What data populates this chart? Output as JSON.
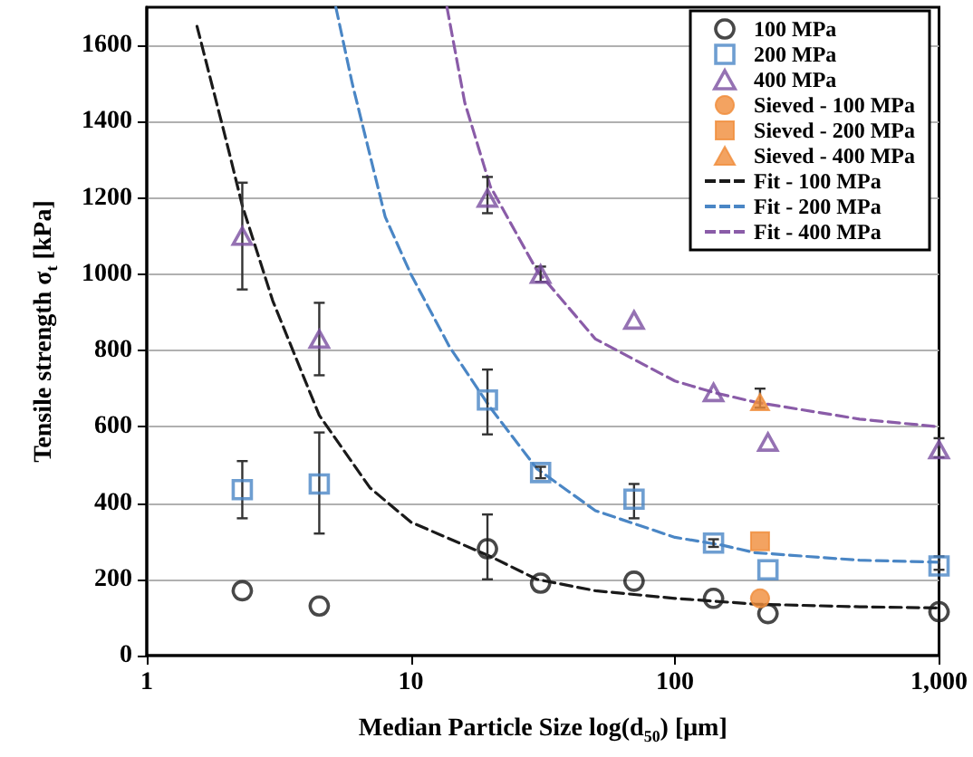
{
  "chart_data": {
    "type": "scatter",
    "xlabel": "Median Particle Size log(d$_{50}$) [μm]",
    "ylabel": "Tensile strength σ$_{t}$ [kPa]",
    "log": "x",
    "xlim": [
      1,
      1000
    ],
    "xticks": [
      1,
      10,
      100,
      {
        "value": 1000,
        "label": "1,000"
      }
    ],
    "ylim": [
      0,
      1700
    ],
    "yticks": [
      0,
      200,
      400,
      600,
      800,
      1000,
      1200,
      1400,
      1600
    ],
    "grid": "y",
    "legend": "top right",
    "series": [
      {
        "name": "100 MPa",
        "color": "#1a1a1a",
        "marker": "circle-open",
        "x": [
          2.3,
          4.5,
          19.5,
          31,
          70,
          140,
          225,
          1000
        ],
        "values": [
          170,
          130,
          280,
          190,
          195,
          150,
          110,
          115
        ],
        "errors": [
          null,
          null,
          [
            200,
            370
          ],
          null,
          null,
          null,
          null,
          null
        ]
      },
      {
        "name": "200 MPa",
        "color": "#4a86c5",
        "marker": "square-open",
        "x": [
          2.3,
          4.5,
          19.5,
          31,
          70,
          140,
          225,
          1000
        ],
        "values": [
          435,
          450,
          670,
          480,
          410,
          295,
          225,
          235
        ],
        "errors": [
          [
            360,
            510
          ],
          [
            320,
            585
          ],
          [
            580,
            750
          ],
          [
            465,
            495
          ],
          [
            360,
            450
          ],
          [
            285,
            305
          ],
          null,
          [
            225,
            260
          ]
        ]
      },
      {
        "name": "400 MPa",
        "color": "#7b4fa0",
        "marker": "triangle-open",
        "x": [
          2.3,
          4.5,
          19.5,
          31,
          70,
          140,
          225,
          1000
        ],
        "values": [
          1100,
          830,
          1200,
          1000,
          880,
          690,
          560,
          540
        ],
        "errors": [
          [
            960,
            1240
          ],
          [
            735,
            925
          ],
          [
            1160,
            1255
          ],
          [
            980,
            1020
          ],
          null,
          null,
          null,
          [
            520,
            570
          ]
        ]
      },
      {
        "name": "Sieved - 100 MPa",
        "color": "#f08c3a",
        "marker": "circle",
        "x": [
          210
        ],
        "values": [
          150
        ]
      },
      {
        "name": "Sieved - 200 MPa",
        "color": "#f08c3a",
        "marker": "square",
        "x": [
          210
        ],
        "values": [
          300
        ]
      },
      {
        "name": "Sieved - 400 MPa",
        "color": "#f08c3a",
        "marker": "triangle",
        "x": [
          210
        ],
        "values": [
          665
        ],
        "errors": [
          [
            650,
            700
          ]
        ]
      },
      {
        "name": "Fit - 100 MPa",
        "type": "line",
        "line_style": "dashed",
        "color": "#1a1a1a",
        "x": [
          1.55,
          2,
          2.3,
          3,
          4.5,
          7,
          10,
          20,
          30,
          50,
          100,
          200,
          500,
          1000
        ],
        "values": [
          1650,
          1350,
          1180,
          930,
          630,
          440,
          350,
          260,
          200,
          170,
          150,
          135,
          128,
          125
        ]
      },
      {
        "name": "Fit - 200 MPa",
        "type": "line",
        "line_style": "dashed",
        "color": "#4a86c5",
        "x": [
          5.2,
          6,
          8,
          10,
          14,
          20,
          30,
          50,
          100,
          150,
          200,
          500,
          1000
        ],
        "values": [
          1700,
          1500,
          1150,
          1000,
          810,
          650,
          490,
          380,
          310,
          290,
          270,
          250,
          245
        ]
      },
      {
        "name": "Fit - 400 MPa",
        "type": "line",
        "line_style": "dashed",
        "color": "#8a5ca8",
        "x": [
          13.7,
          16,
          20,
          30,
          50,
          100,
          140,
          200,
          500,
          1000
        ],
        "values": [
          1700,
          1450,
          1230,
          1010,
          830,
          720,
          690,
          665,
          620,
          600
        ]
      }
    ]
  }
}
